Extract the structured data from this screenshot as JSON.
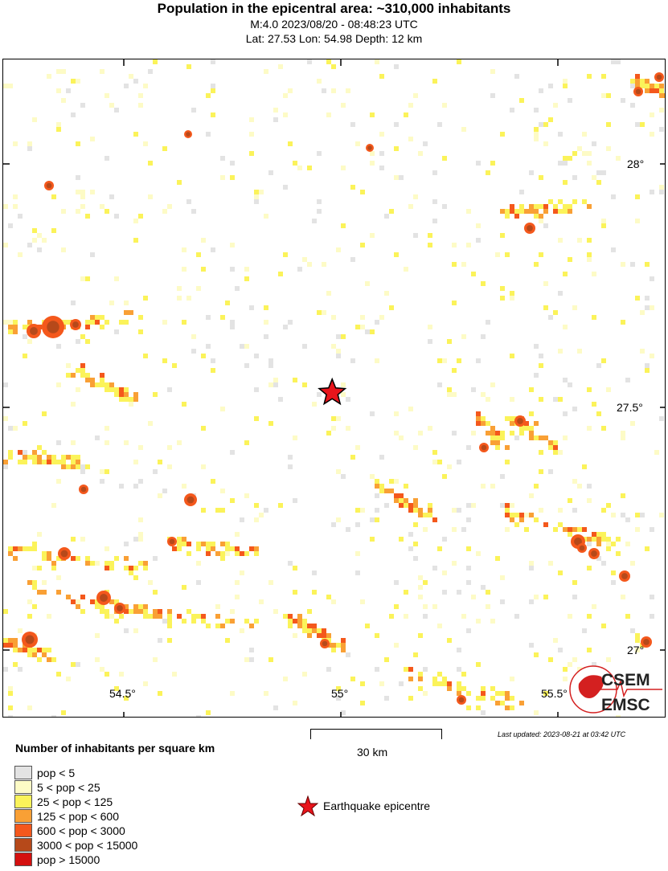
{
  "header": {
    "title": "Population in the epicentral area: ~310,000 inhabitants",
    "event": "M:4.0 2023/08/20 - 08:48:23 UTC",
    "location": "Lat: 27.53 Lon: 54.98 Depth: 12 km"
  },
  "map": {
    "lat_labels": [
      "28°",
      "27.5°",
      "27°"
    ],
    "lon_labels": [
      "54.5°",
      "55°",
      "55.5°"
    ],
    "epicentre": {
      "lat": 27.53,
      "lon": 54.98,
      "color": "#e8141b"
    },
    "logo": {
      "line1": "CSEM",
      "line2": "EMSC"
    }
  },
  "scale_bar": {
    "label": "30 km"
  },
  "last_updated": "Last updated: 2023-08-21 at 03:42 UTC",
  "legend": {
    "title": "Number of inhabitants per square km",
    "items": [
      {
        "label": "pop < 5",
        "color": "#e3e3e3"
      },
      {
        "label": "5 < pop < 25",
        "color": "#fdfbc6"
      },
      {
        "label": "25 < pop < 125",
        "color": "#fbf35a"
      },
      {
        "label": "125 < pop < 600",
        "color": "#f9a035"
      },
      {
        "label": "600 < pop < 3000",
        "color": "#f4581c"
      },
      {
        "label": "3000 < pop < 15000",
        "color": "#b6491a"
      },
      {
        "label": "pop > 15000",
        "color": "#d4100f"
      }
    ],
    "epicentre_label": "Earthquake epicentre"
  }
}
